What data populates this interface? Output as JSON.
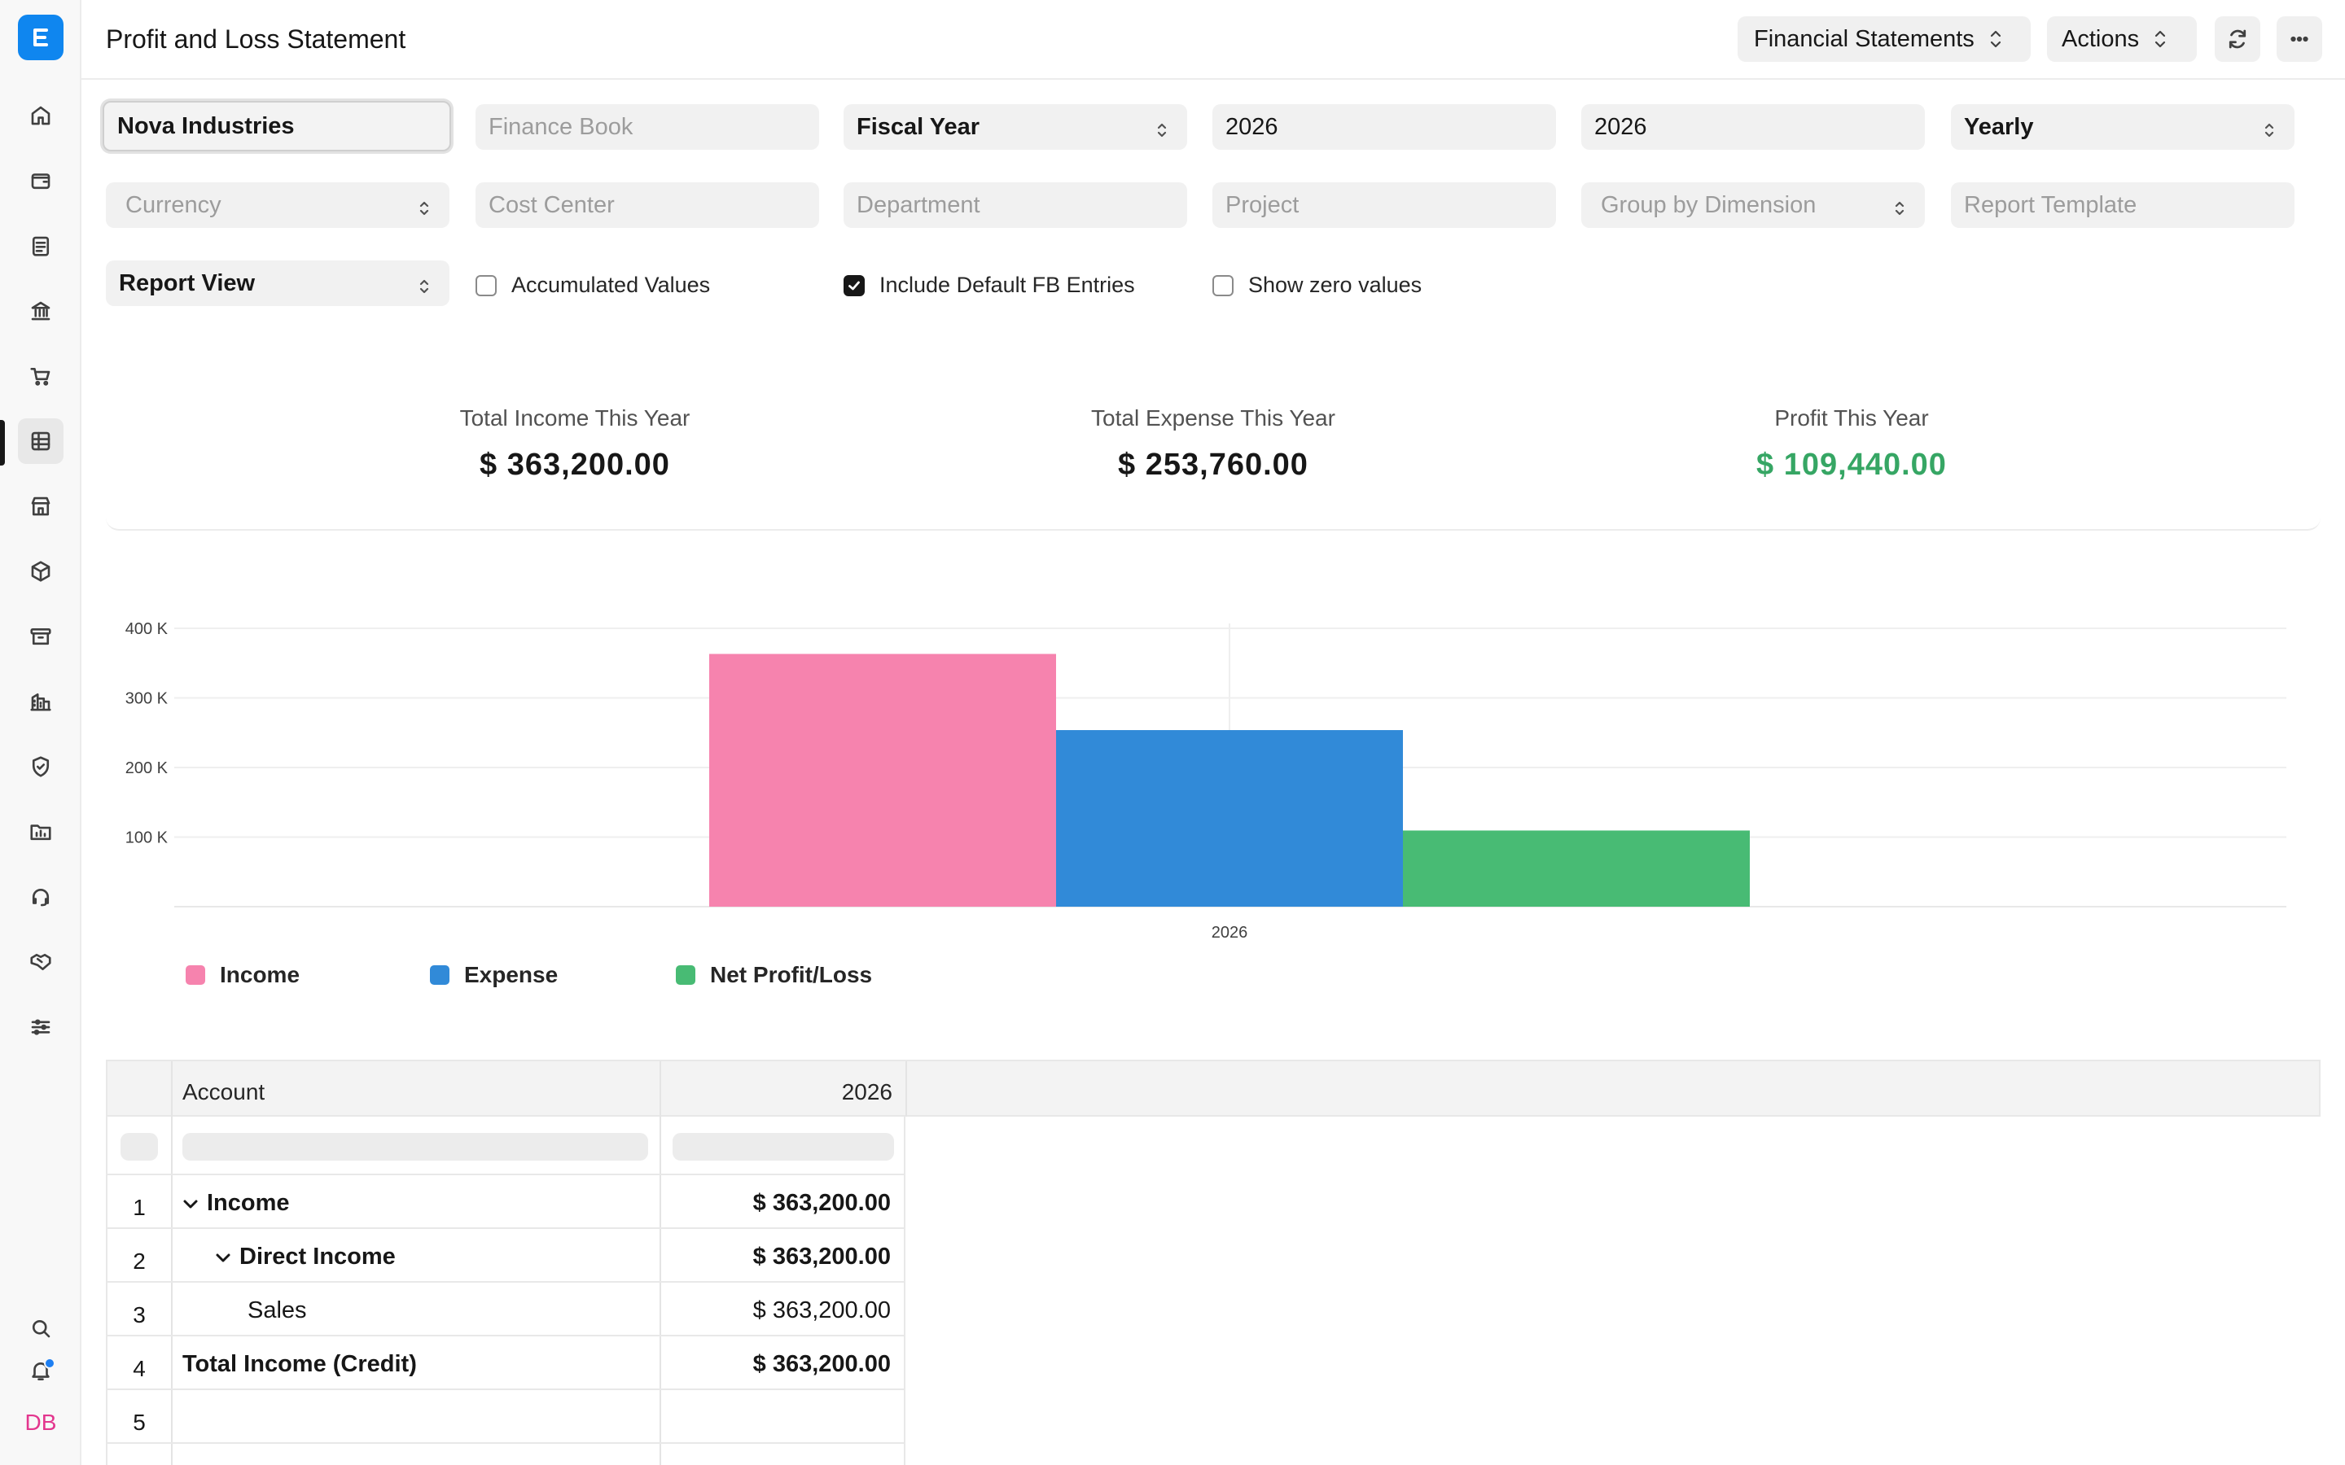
{
  "header": {
    "title": "Profit and Loss Statement",
    "report_type": "Financial Statements",
    "actions_label": "Actions"
  },
  "filters": {
    "company": "Nova Industries",
    "finance_book_placeholder": "Finance Book",
    "period_basis": "Fiscal Year",
    "from_year": "2026",
    "to_year": "2026",
    "periodicity": "Yearly",
    "currency_placeholder": "Currency",
    "cost_center_placeholder": "Cost Center",
    "department_placeholder": "Department",
    "project_placeholder": "Project",
    "group_by_placeholder": "Group by Dimension",
    "report_template_placeholder": "Report Template",
    "report_view": "Report View",
    "accumulated_values": {
      "label": "Accumulated Values",
      "checked": false
    },
    "include_default_fb": {
      "label": "Include Default FB Entries",
      "checked": true
    },
    "show_zero_values": {
      "label": "Show zero values",
      "checked": false
    }
  },
  "summary": {
    "income": {
      "label": "Total Income This Year",
      "value": "$ 363,200.00"
    },
    "expense": {
      "label": "Total Expense This Year",
      "value": "$ 253,760.00"
    },
    "profit": {
      "label": "Profit This Year",
      "value": "$ 109,440.00"
    }
  },
  "colors": {
    "income": "#f683ae",
    "expense": "#318ad8",
    "profit": "#48bb74",
    "profit_text": "#36a664",
    "accent": "#0f86ef"
  },
  "chart_data": {
    "type": "bar",
    "categories": [
      "2026"
    ],
    "series": [
      {
        "name": "Income",
        "values": [
          363200
        ]
      },
      {
        "name": "Expense",
        "values": [
          253760
        ]
      },
      {
        "name": "Net Profit/Loss",
        "values": [
          109440
        ]
      }
    ],
    "yticks": [
      "100 K",
      "200 K",
      "300 K",
      "400 K"
    ],
    "ylim": [
      0,
      400000
    ],
    "grid": true,
    "legend": "bottom-left"
  },
  "table": {
    "columns": [
      "Account",
      "2026"
    ],
    "rows": [
      {
        "num": "1",
        "account": "Income",
        "amount": "$ 363,200.00"
      },
      {
        "num": "2",
        "account": "Direct Income",
        "amount": "$ 363,200.00"
      },
      {
        "num": "3",
        "account": "Sales",
        "amount": "$ 363,200.00"
      },
      {
        "num": "4",
        "account": "Total Income (Credit)",
        "amount": "$ 363,200.00"
      },
      {
        "num": "5",
        "account": "",
        "amount": ""
      }
    ]
  },
  "sidebar": {
    "avatar_initials": "DB",
    "icons": [
      "home-icon",
      "wallet-icon",
      "document-icon",
      "bank-icon",
      "cart-icon",
      "table-icon",
      "store-icon",
      "box-icon",
      "archive-icon",
      "building-icon",
      "shield-icon",
      "folder-chart-icon",
      "headset-icon",
      "handshake-icon",
      "sliders-icon"
    ]
  }
}
